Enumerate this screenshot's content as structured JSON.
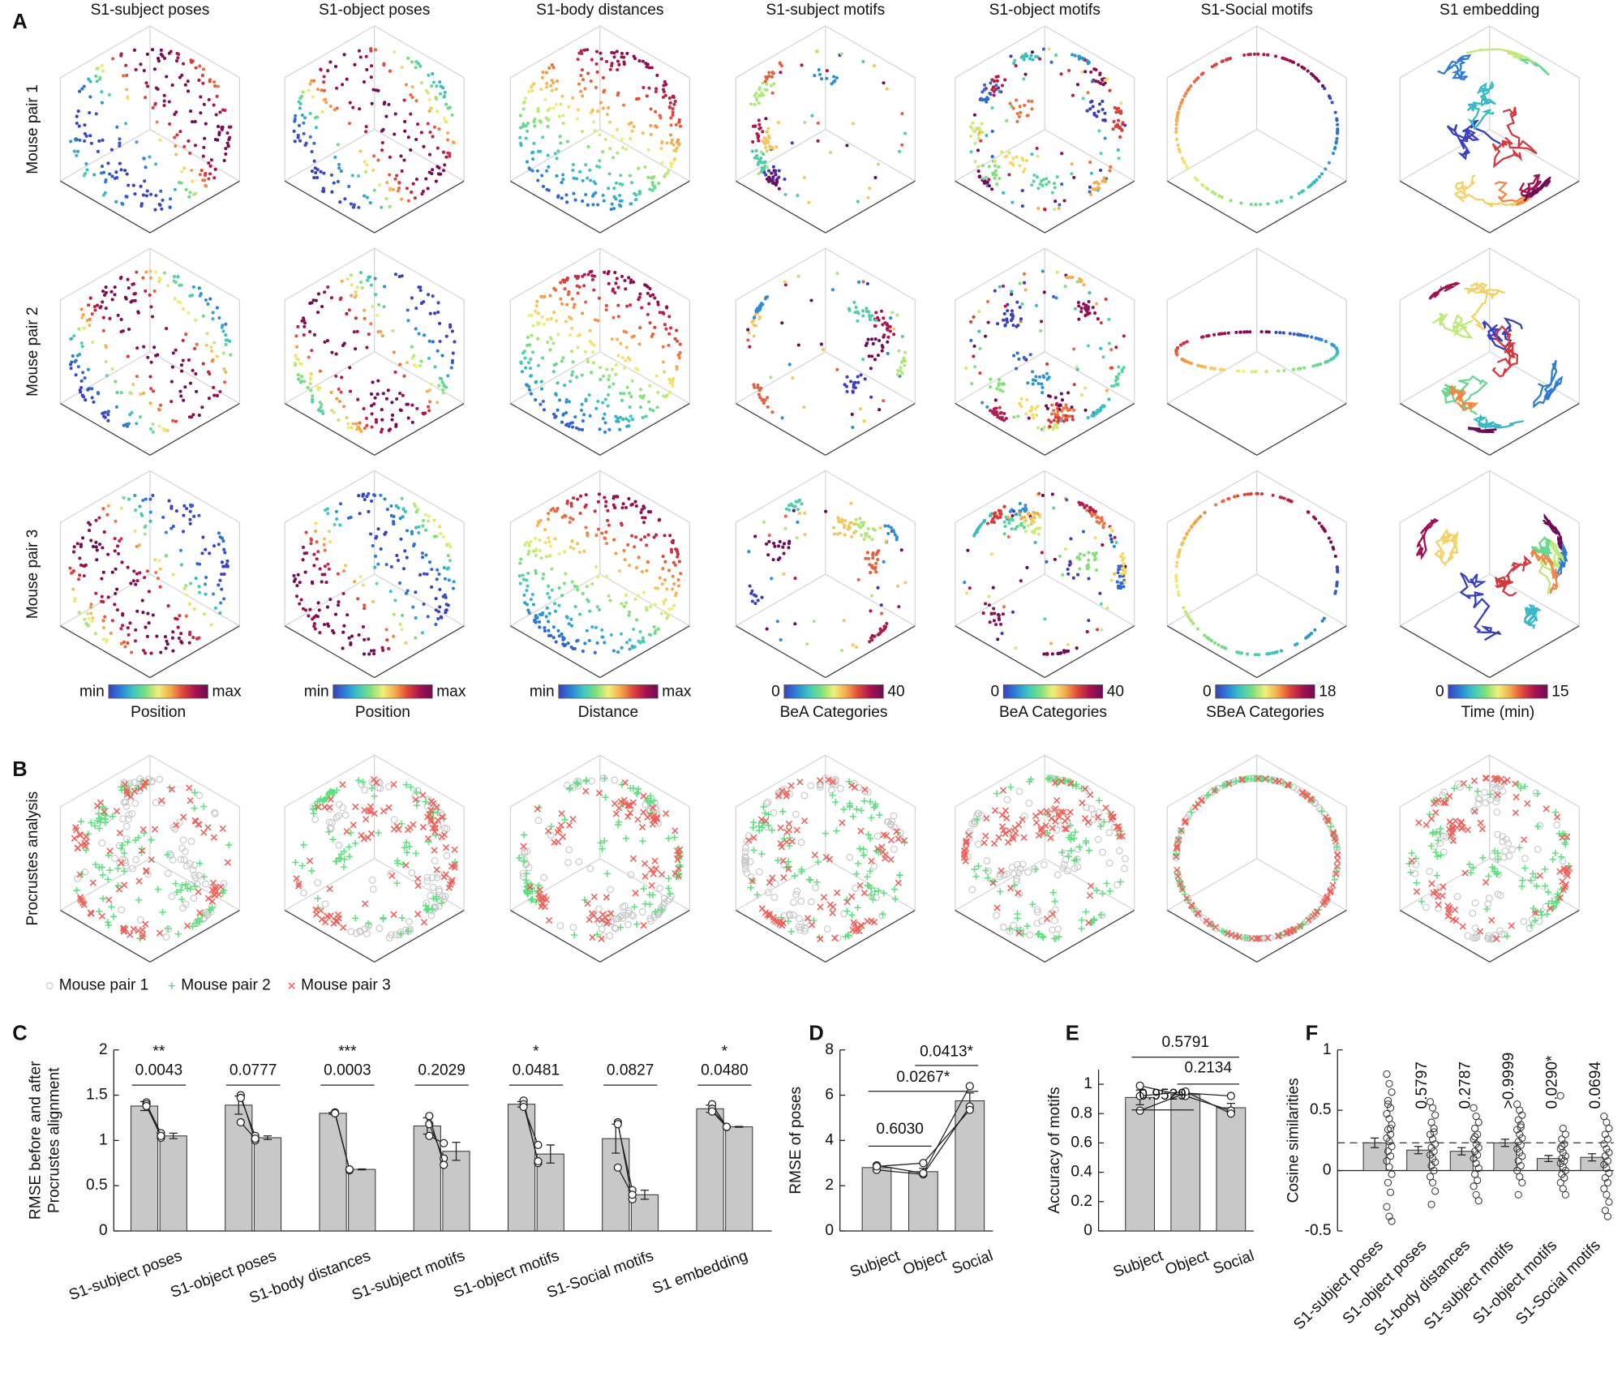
{
  "panel_labels": [
    "A",
    "B",
    "C",
    "D",
    "E",
    "F"
  ],
  "column_titles": [
    "S1-subject poses",
    "S1-object poses",
    "S1-body distances",
    "S1-subject motifs",
    "S1-object motifs",
    "S1-Social motifs",
    "S1 embedding"
  ],
  "panel_a": {
    "row_labels": [
      "Mouse pair 1",
      "Mouse pair 2",
      "Mouse pair 3"
    ],
    "colormap": [
      "#3a3fbd",
      "#2b83d8",
      "#3ec7c0",
      "#7de07a",
      "#f2f07a",
      "#f6a84b",
      "#e0453a",
      "#a5124f",
      "#6e0b57"
    ],
    "colorbars": [
      {
        "min": "min",
        "max": "max",
        "label": "Position"
      },
      {
        "min": "min",
        "max": "max",
        "label": "Position"
      },
      {
        "min": "min",
        "max": "max",
        "label": "Distance"
      },
      {
        "min": 0,
        "max": 40,
        "label": "BeA Categories"
      },
      {
        "min": 0,
        "max": 40,
        "label": "BeA Categories"
      },
      {
        "min": 0,
        "max": 18,
        "label": "SBeA Categories"
      },
      {
        "min": 0,
        "max": 15,
        "label": "Time (min)"
      }
    ]
  },
  "panel_b": {
    "row_label": "Procrustes analysis",
    "legend": [
      {
        "name": "Mouse pair 1",
        "color": "#c8c8c8",
        "marker": "o"
      },
      {
        "name": "Mouse pair 2",
        "color": "#5ee07f",
        "marker": "+"
      },
      {
        "name": "Mouse pair 3",
        "color": "#f0605a",
        "marker": "x"
      }
    ]
  },
  "chart_data": [
    {
      "type": "bar",
      "categories": [
        "S1-subject poses",
        "S1-object poses",
        "S1-body distances",
        "S1-subject motifs",
        "S1-object motifs",
        "S1-Social motifs",
        "S1 embedding"
      ],
      "ylabel": [
        "RMSE before and after",
        "Procrustes alignment"
      ],
      "ylim": [
        0,
        2
      ],
      "yticks": [
        0,
        0.5,
        1,
        1.5,
        2
      ],
      "series": [
        {
          "color": "#c8c8c8",
          "values": [
            1.38,
            1.39,
            1.3,
            1.16,
            1.4,
            1.02,
            1.35
          ],
          "errors": [
            0.05,
            0.1,
            0.01,
            0.09,
            0.03,
            0.16,
            0.04
          ]
        },
        {
          "color": "#c8c8c8",
          "values": [
            1.05,
            1.03,
            0.68,
            0.88,
            0.85,
            0.4,
            1.15
          ],
          "errors": [
            0.03,
            0.02,
            0.005,
            0.1,
            0.1,
            0.05,
            0.005
          ]
        }
      ],
      "pairs": [
        [
          [
            1.42,
            1.03
          ],
          [
            1.4,
            1.08
          ],
          [
            1.38,
            1.05
          ]
        ],
        [
          [
            1.5,
            1.0
          ],
          [
            1.47,
            1.05
          ],
          [
            1.2,
            1.02
          ]
        ],
        [
          [
            1.3,
            0.68
          ],
          [
            1.31,
            0.67
          ],
          [
            1.3,
            0.68
          ]
        ],
        [
          [
            1.18,
            0.8
          ],
          [
            1.27,
            0.73
          ],
          [
            1.05,
            0.97
          ]
        ],
        [
          [
            1.44,
            0.75
          ],
          [
            1.4,
            0.77
          ],
          [
            1.37,
            0.95
          ]
        ],
        [
          [
            1.2,
            0.35
          ],
          [
            1.18,
            0.45
          ],
          [
            0.7,
            0.4
          ]
        ],
        [
          [
            1.4,
            1.15
          ],
          [
            1.35,
            1.15
          ],
          [
            1.32,
            1.15
          ]
        ]
      ],
      "annotations": [
        "0.0043",
        "0.0777",
        "0.0003",
        "0.2029",
        "0.0481",
        "0.0827",
        "0.0480"
      ],
      "stars": [
        "**",
        null,
        "***",
        null,
        "*",
        null,
        "*"
      ]
    },
    {
      "type": "bar",
      "categories": [
        "Subject",
        "Object",
        "Social"
      ],
      "ylabel": "RMSE of poses",
      "ylim": [
        0,
        8
      ],
      "yticks": [
        0,
        2,
        4,
        6,
        8
      ],
      "color": "#c8c8c8",
      "values": [
        2.8,
        2.62,
        5.75
      ],
      "errors": [
        0.15,
        0.15,
        0.35
      ],
      "lines": [
        [
          2.7,
          2.5,
          5.5
        ],
        [
          2.9,
          2.55,
          6.4
        ],
        [
          2.85,
          3.0,
          5.35
        ]
      ],
      "brackets": [
        {
          "between": [
            0,
            1
          ],
          "text": "0.6030"
        },
        {
          "between": [
            0,
            2
          ],
          "text": "0.0267*"
        },
        {
          "between": [
            1,
            2
          ],
          "text": "0.0413*"
        }
      ]
    },
    {
      "type": "bar",
      "categories": [
        "Subject",
        "Object",
        "Social"
      ],
      "ylabel": "Accuracy of motifs",
      "ylim": [
        0,
        1.1
      ],
      "yticks": [
        0,
        0.2,
        0.4,
        0.6,
        0.8,
        1
      ],
      "color": "#c8c8c8",
      "values": [
        0.91,
        0.93,
        0.84
      ],
      "errors": [
        0.05,
        0.015,
        0.03
      ],
      "lines": [
        [
          0.82,
          0.94,
          0.92
        ],
        [
          0.99,
          0.92,
          0.82
        ],
        [
          0.92,
          0.95,
          0.8
        ]
      ],
      "brackets": [
        {
          "between": [
            0,
            1
          ],
          "text": "0.9529"
        },
        {
          "between": [
            1,
            2
          ],
          "text": "0.2134"
        },
        {
          "between": [
            0,
            2
          ],
          "text": "0.5791"
        }
      ]
    },
    {
      "type": "bar",
      "categories": [
        "S1-subject poses",
        "S1-object poses",
        "S1-body distances",
        "S1-subject motifs",
        "S1-object motifs",
        "S1-Social motifs"
      ],
      "ylabel": "Cosine similarities",
      "ylim": [
        -0.5,
        1
      ],
      "yticks": [
        -0.5,
        0,
        0.5,
        1
      ],
      "color": "#c8c8c8",
      "values": [
        0.23,
        0.17,
        0.16,
        0.23,
        0.1,
        0.11
      ],
      "errors": [
        0.04,
        0.03,
        0.03,
        0.03,
        0.025,
        0.03
      ],
      "reference_line": 0.23,
      "pvalues": [
        null,
        "0.5797",
        "0.2787",
        ">0.9999",
        "0.0290*",
        "0.0694"
      ],
      "points": [
        [
          0.8,
          0.72,
          0.65,
          0.58,
          0.52,
          0.47,
          0.43,
          0.38,
          0.34,
          0.3,
          0.27,
          0.24,
          0.2,
          0.16,
          0.12,
          0.08,
          0.03,
          -0.03,
          -0.1,
          -0.18,
          -0.3,
          -0.38,
          -0.42,
          0.55,
          0.35
        ],
        [
          0.57,
          0.52,
          0.46,
          0.4,
          0.35,
          0.3,
          0.26,
          0.22,
          0.19,
          0.16,
          0.13,
          0.1,
          0.07,
          0.04,
          0.0,
          -0.05,
          -0.1,
          -0.17,
          -0.28,
          0.32
        ],
        [
          0.52,
          0.45,
          0.4,
          0.35,
          0.3,
          0.26,
          0.22,
          0.19,
          0.16,
          0.13,
          0.1,
          0.06,
          0.02,
          -0.03,
          -0.08,
          -0.13,
          -0.2,
          -0.25,
          0.28
        ],
        [
          0.55,
          0.5,
          0.46,
          0.42,
          0.38,
          0.34,
          0.3,
          0.27,
          0.24,
          0.21,
          0.18,
          0.15,
          0.12,
          0.08,
          0.04,
          0.0,
          -0.05,
          -0.1,
          -0.2,
          0.36
        ],
        [
          0.62,
          0.35,
          0.3,
          0.26,
          0.22,
          0.18,
          0.15,
          0.12,
          0.1,
          0.08,
          0.06,
          0.03,
          0.0,
          -0.03,
          -0.06,
          -0.1,
          -0.15,
          -0.2,
          0.2
        ],
        [
          0.45,
          0.4,
          0.35,
          0.3,
          0.26,
          0.22,
          0.18,
          0.15,
          0.12,
          0.08,
          0.05,
          0.02,
          -0.02,
          -0.06,
          -0.1,
          -0.15,
          -0.2,
          -0.26,
          -0.33,
          -0.38
        ]
      ]
    }
  ]
}
